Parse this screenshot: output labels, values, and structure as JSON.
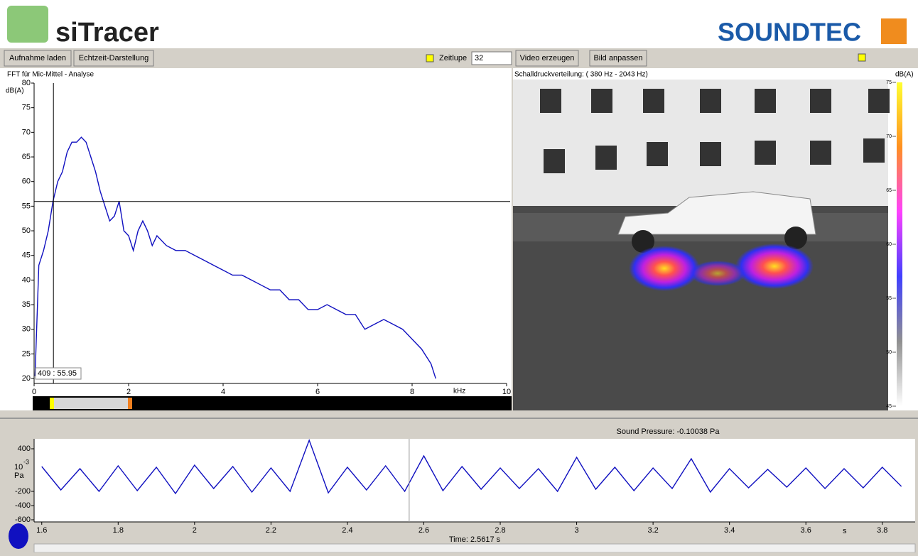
{
  "header": {
    "app_name": "siTracer",
    "brand": "SOUNDTEC"
  },
  "toolbar": {
    "buttons": [
      "Aufnahme laden",
      "Echtzeit-Darstellung",
      "Video erzeugen",
      "Bild anpassen"
    ],
    "checkbox_label": "Zeitlupe",
    "zeitlupe_value": "32"
  },
  "chart_data": [
    {
      "type": "line",
      "title": "FFT für Mic-Mittel - Analyse",
      "xlabel": "kHz",
      "ylabel": "dB(A)",
      "xlim": [
        0,
        10
      ],
      "ylim": [
        19,
        80
      ],
      "xticks": [
        0,
        2,
        4,
        6,
        8,
        10
      ],
      "yticks": [
        20,
        25,
        30,
        35,
        40,
        45,
        50,
        55,
        60,
        65,
        70,
        75,
        80
      ],
      "cursor": {
        "x": 0.409,
        "y": 55.95,
        "label": "409 : 55.95"
      },
      "series": [
        {
          "color": "#1010c0",
          "x": [
            0.02,
            0.1,
            0.2,
            0.3,
            0.4,
            0.5,
            0.6,
            0.7,
            0.8,
            0.9,
            1.0,
            1.1,
            1.2,
            1.3,
            1.4,
            1.5,
            1.6,
            1.7,
            1.8,
            1.9,
            2.0,
            2.1,
            2.2,
            2.3,
            2.4,
            2.5,
            2.6,
            2.8,
            3.0,
            3.2,
            3.4,
            3.6,
            3.8,
            4.0,
            4.2,
            4.4,
            4.6,
            4.8,
            5.0,
            5.2,
            5.4,
            5.6,
            5.8,
            6.0,
            6.2,
            6.4,
            6.6,
            6.8,
            7.0,
            7.2,
            7.4,
            7.6,
            7.8,
            8.0,
            8.2,
            8.4,
            8.5
          ],
          "values": [
            20.5,
            43,
            46,
            50,
            56,
            60,
            62,
            66,
            68,
            68,
            69,
            68,
            65,
            62,
            58,
            55,
            52,
            53,
            56,
            50,
            49,
            46,
            50,
            52,
            50,
            47,
            49,
            47,
            46,
            46,
            45,
            44,
            43,
            42,
            41,
            41,
            40,
            39,
            38,
            38,
            36,
            36,
            34,
            34,
            35,
            34,
            33,
            33,
            30,
            31,
            32,
            31,
            30,
            28,
            26,
            23,
            20
          ]
        }
      ]
    },
    {
      "type": "line",
      "title": "Sound Pressure: -0.10038 Pa",
      "xlabel": "s",
      "ylabel_base": "10",
      "ylabel_exp": "-3",
      "ylabel_unit": "Pa",
      "time_label": "Time: 2.5617 s",
      "time_marker": 2.5617,
      "xlim": [
        1.58,
        3.886
      ],
      "ylim": [
        -630,
        540
      ],
      "xticks": [
        1.6,
        1.8,
        2,
        2.2,
        2.4,
        2.6,
        2.8,
        3,
        3.2,
        3.4,
        3.6,
        3.8
      ],
      "yticks": [
        400,
        -200,
        -400,
        -600
      ],
      "series": [
        {
          "color": "#1010c0",
          "x": [
            1.6,
            1.65,
            1.7,
            1.75,
            1.8,
            1.85,
            1.9,
            1.95,
            2.0,
            2.05,
            2.1,
            2.15,
            2.2,
            2.25,
            2.3,
            2.35,
            2.4,
            2.45,
            2.5,
            2.55,
            2.6,
            2.65,
            2.7,
            2.75,
            2.8,
            2.85,
            2.9,
            2.95,
            3.0,
            3.05,
            3.1,
            3.15,
            3.2,
            3.25,
            3.3,
            3.35,
            3.4,
            3.45,
            3.5,
            3.55,
            3.6,
            3.65,
            3.7,
            3.75,
            3.8,
            3.85
          ],
          "values": [
            150,
            -180,
            120,
            -200,
            160,
            -190,
            140,
            -230,
            170,
            -160,
            150,
            -210,
            130,
            -200,
            520,
            -220,
            140,
            -180,
            160,
            -200,
            300,
            -190,
            150,
            -170,
            130,
            -160,
            120,
            -200,
            280,
            -170,
            140,
            -190,
            130,
            -160,
            260,
            -210,
            120,
            -150,
            110,
            -140,
            130,
            -160,
            120,
            -150,
            140,
            -130
          ]
        }
      ]
    }
  ],
  "image_panel": {
    "title": "Schalldruckverteilung: ( 380 Hz - 2043 Hz)",
    "colorbar_label": "dB(A)",
    "ylim": [
      45,
      75
    ],
    "yticks": [
      45,
      50,
      55,
      60,
      65,
      70,
      75
    ]
  }
}
